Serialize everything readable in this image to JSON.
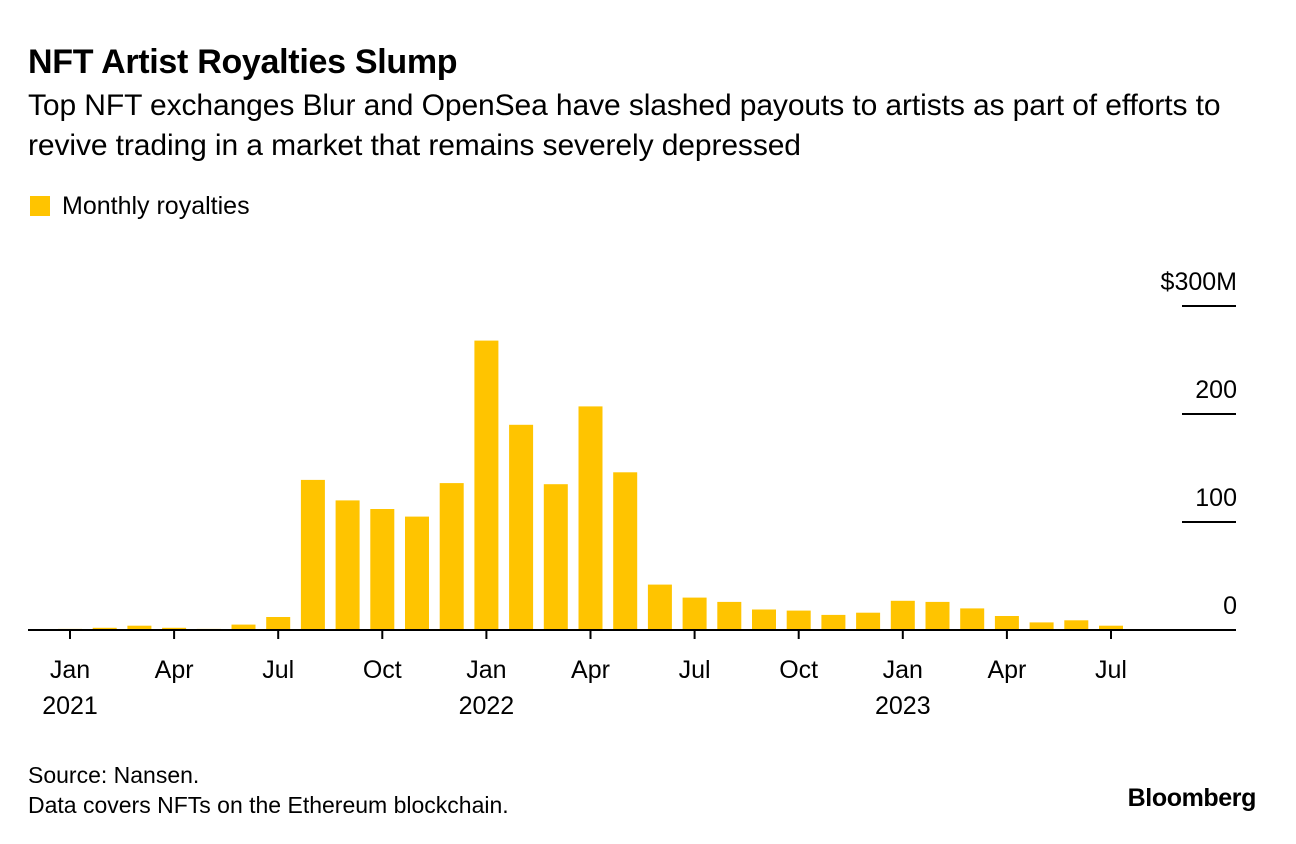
{
  "header": {
    "title": "NFT Artist Royalties Slump",
    "subtitle": "Top NFT exchanges Blur and OpenSea have slashed payouts to artists as part of efforts to revive trading in a market that remains severely depressed"
  },
  "colors": {
    "bar": "#FFC400",
    "text": "#000000",
    "axis": "#000000"
  },
  "chart_data": {
    "type": "bar",
    "title": "NFT Artist Royalties Slump",
    "subtitle": "Top NFT exchanges Blur and OpenSea have slashed payouts to artists as part of efforts to revive trading in a market that remains severely depressed",
    "legend": [
      {
        "name": "Monthly royalties",
        "color": "#FFC400"
      }
    ],
    "legend_position": "top-left",
    "categories": [
      "Jan 2021",
      "Feb 2021",
      "Mar 2021",
      "Apr 2021",
      "May 2021",
      "Jun 2021",
      "Jul 2021",
      "Aug 2021",
      "Sep 2021",
      "Oct 2021",
      "Nov 2021",
      "Dec 2021",
      "Jan 2022",
      "Feb 2022",
      "Mar 2022",
      "Apr 2022",
      "May 2022",
      "Jun 2022",
      "Jul 2022",
      "Aug 2022",
      "Sep 2022",
      "Oct 2022",
      "Nov 2022",
      "Dec 2022",
      "Jan 2023",
      "Feb 2023",
      "Mar 2023",
      "Apr 2023",
      "May 2023",
      "Jun 2023",
      "Jul 2023"
    ],
    "series": [
      {
        "name": "Monthly royalties",
        "values": [
          1,
          2,
          4,
          2,
          1,
          5,
          12,
          139,
          120,
          112,
          105,
          136,
          268,
          190,
          135,
          207,
          146,
          42,
          30,
          26,
          19,
          18,
          14,
          16,
          27,
          26,
          20,
          13,
          7,
          9,
          4
        ]
      }
    ],
    "unit": "$M",
    "ylim": [
      0,
      300
    ],
    "yticks": [
      0,
      100,
      200,
      300
    ],
    "ytick_labels": [
      "0",
      "100",
      "200",
      "$300M"
    ],
    "y_axis_side": "right",
    "x_ticks": [
      {
        "index": 0,
        "month": "Jan",
        "year": "2021"
      },
      {
        "index": 3,
        "month": "Apr",
        "year": ""
      },
      {
        "index": 6,
        "month": "Jul",
        "year": ""
      },
      {
        "index": 9,
        "month": "Oct",
        "year": ""
      },
      {
        "index": 12,
        "month": "Jan",
        "year": "2022"
      },
      {
        "index": 15,
        "month": "Apr",
        "year": ""
      },
      {
        "index": 18,
        "month": "Jul",
        "year": ""
      },
      {
        "index": 21,
        "month": "Oct",
        "year": ""
      },
      {
        "index": 24,
        "month": "Jan",
        "year": "2023"
      },
      {
        "index": 27,
        "month": "Apr",
        "year": ""
      },
      {
        "index": 30,
        "month": "Jul",
        "year": ""
      }
    ],
    "xlabel": "",
    "ylabel": "",
    "grid": false
  },
  "footer": {
    "source": "Source: Nansen.",
    "note": "Data covers NFTs on the Ethereum blockchain.",
    "logo": "Bloomberg"
  }
}
